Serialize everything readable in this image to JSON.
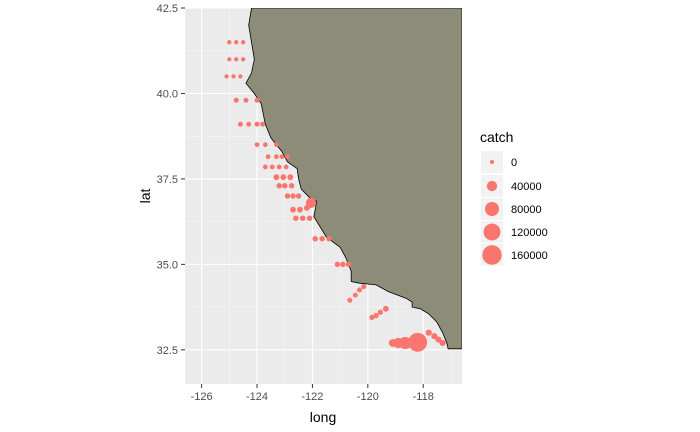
{
  "chart_data": {
    "type": "scatter",
    "xlabel": "long",
    "ylabel": "lat",
    "xlim": [
      -126.6,
      -116.6
    ],
    "ylim": [
      31.5,
      42.5
    ],
    "x_ticks": [
      -126,
      -124,
      -122,
      -120,
      -118
    ],
    "y_ticks": [
      32.5,
      35.0,
      37.5,
      40.0,
      42.5
    ],
    "x_tick_labels": [
      "-126",
      "-124",
      "-122",
      "-120",
      "-118"
    ],
    "y_tick_labels": [
      "32.5",
      "35.0",
      "37.5",
      "40.0",
      "42.5"
    ],
    "grid": true,
    "legend_placement": "right",
    "legend": {
      "title": "catch",
      "entries": [
        {
          "label": "0",
          "value": 0
        },
        {
          "label": "40000",
          "value": 40000
        },
        {
          "label": "80000",
          "value": 80000
        },
        {
          "label": "120000",
          "value": 120000
        },
        {
          "label": "160000",
          "value": 160000
        }
      ]
    },
    "colors": {
      "panel": "#ebebeb",
      "grid_major": "#ffffff",
      "land": "#8c8c78",
      "coast": "#000000",
      "point": "#f8766d"
    },
    "land_outline": [
      [
        -124.2,
        42.5
      ],
      [
        -124.3,
        42.0
      ],
      [
        -124.2,
        41.5
      ],
      [
        -124.1,
        41.0
      ],
      [
        -124.2,
        40.6
      ],
      [
        -124.4,
        40.3
      ],
      [
        -124.1,
        40.0
      ],
      [
        -123.85,
        39.7
      ],
      [
        -123.7,
        39.1
      ],
      [
        -123.5,
        38.7
      ],
      [
        -123.1,
        38.3
      ],
      [
        -122.9,
        38.0
      ],
      [
        -122.55,
        37.8
      ],
      [
        -122.5,
        37.5
      ],
      [
        -122.4,
        37.2
      ],
      [
        -122.1,
        36.95
      ],
      [
        -121.85,
        36.85
      ],
      [
        -121.9,
        36.6
      ],
      [
        -121.95,
        36.4
      ],
      [
        -121.5,
        35.8
      ],
      [
        -121.0,
        35.5
      ],
      [
        -120.8,
        35.2
      ],
      [
        -120.6,
        34.8
      ],
      [
        -120.6,
        34.5
      ],
      [
        -120.3,
        34.45
      ],
      [
        -119.7,
        34.4
      ],
      [
        -119.25,
        34.2
      ],
      [
        -118.6,
        34.0
      ],
      [
        -118.4,
        33.9
      ],
      [
        -118.4,
        33.75
      ],
      [
        -118.1,
        33.7
      ],
      [
        -117.8,
        33.55
      ],
      [
        -117.5,
        33.3
      ],
      [
        -117.3,
        33.0
      ],
      [
        -117.15,
        32.7
      ],
      [
        -117.1,
        32.53
      ],
      [
        -116.6,
        32.53
      ],
      [
        -116.6,
        42.5
      ]
    ],
    "points": [
      {
        "long": -125.0,
        "lat": 41.5,
        "catch": 1000
      },
      {
        "long": -124.75,
        "lat": 41.5,
        "catch": 1000
      },
      {
        "long": -124.5,
        "lat": 41.5,
        "catch": 1000
      },
      {
        "long": -125.0,
        "lat": 41.0,
        "catch": 1000
      },
      {
        "long": -124.75,
        "lat": 41.0,
        "catch": 1000
      },
      {
        "long": -124.5,
        "lat": 41.0,
        "catch": 1000
      },
      {
        "long": -125.1,
        "lat": 40.5,
        "catch": 1000
      },
      {
        "long": -124.85,
        "lat": 40.5,
        "catch": 1000
      },
      {
        "long": -124.6,
        "lat": 40.5,
        "catch": 1000
      },
      {
        "long": -124.75,
        "lat": 39.8,
        "catch": 4000
      },
      {
        "long": -124.4,
        "lat": 39.8,
        "catch": 4000
      },
      {
        "long": -124.0,
        "lat": 39.8,
        "catch": 4000
      },
      {
        "long": -124.6,
        "lat": 39.1,
        "catch": 4000
      },
      {
        "long": -124.3,
        "lat": 39.1,
        "catch": 4000
      },
      {
        "long": -124.0,
        "lat": 39.1,
        "catch": 4000
      },
      {
        "long": -123.8,
        "lat": 39.1,
        "catch": 4000
      },
      {
        "long": -124.0,
        "lat": 38.5,
        "catch": 3000
      },
      {
        "long": -123.7,
        "lat": 38.5,
        "catch": 3000
      },
      {
        "long": -123.3,
        "lat": 38.5,
        "catch": 3000
      },
      {
        "long": -123.6,
        "lat": 38.15,
        "catch": 3000
      },
      {
        "long": -123.3,
        "lat": 38.15,
        "catch": 3000
      },
      {
        "long": -123.1,
        "lat": 38.15,
        "catch": 3000
      },
      {
        "long": -122.9,
        "lat": 38.15,
        "catch": 3000
      },
      {
        "long": -123.7,
        "lat": 37.85,
        "catch": 3000
      },
      {
        "long": -123.45,
        "lat": 37.85,
        "catch": 3000
      },
      {
        "long": -123.2,
        "lat": 37.85,
        "catch": 3000
      },
      {
        "long": -122.95,
        "lat": 37.85,
        "catch": 3000
      },
      {
        "long": -123.3,
        "lat": 37.55,
        "catch": 8000
      },
      {
        "long": -123.05,
        "lat": 37.55,
        "catch": 8000
      },
      {
        "long": -122.8,
        "lat": 37.55,
        "catch": 8000
      },
      {
        "long": -123.2,
        "lat": 37.3,
        "catch": 6000
      },
      {
        "long": -123.0,
        "lat": 37.3,
        "catch": 6000
      },
      {
        "long": -122.75,
        "lat": 37.3,
        "catch": 6000
      },
      {
        "long": -122.9,
        "lat": 37.0,
        "catch": 6000
      },
      {
        "long": -122.7,
        "lat": 37.0,
        "catch": 6000
      },
      {
        "long": -122.5,
        "lat": 37.0,
        "catch": 6000
      },
      {
        "long": -122.7,
        "lat": 36.6,
        "catch": 8000
      },
      {
        "long": -122.45,
        "lat": 36.6,
        "catch": 8000
      },
      {
        "long": -122.2,
        "lat": 36.65,
        "catch": 8000
      },
      {
        "long": -122.05,
        "lat": 36.8,
        "catch": 40000
      },
      {
        "long": -122.6,
        "lat": 36.35,
        "catch": 6000
      },
      {
        "long": -122.35,
        "lat": 36.35,
        "catch": 6000
      },
      {
        "long": -122.1,
        "lat": 36.35,
        "catch": 6000
      },
      {
        "long": -121.9,
        "lat": 35.75,
        "catch": 6000
      },
      {
        "long": -121.65,
        "lat": 35.75,
        "catch": 6000
      },
      {
        "long": -121.4,
        "lat": 35.75,
        "catch": 6000
      },
      {
        "long": -121.1,
        "lat": 35.0,
        "catch": 6000
      },
      {
        "long": -120.9,
        "lat": 35.0,
        "catch": 6000
      },
      {
        "long": -120.7,
        "lat": 35.0,
        "catch": 6000
      },
      {
        "long": -120.65,
        "lat": 33.95,
        "catch": 4000
      },
      {
        "long": -120.45,
        "lat": 34.1,
        "catch": 4000
      },
      {
        "long": -120.3,
        "lat": 34.25,
        "catch": 4000
      },
      {
        "long": -120.15,
        "lat": 34.35,
        "catch": 4000
      },
      {
        "long": -119.85,
        "lat": 33.45,
        "catch": 5000
      },
      {
        "long": -119.7,
        "lat": 33.5,
        "catch": 5000
      },
      {
        "long": -119.55,
        "lat": 33.6,
        "catch": 5000
      },
      {
        "long": -119.35,
        "lat": 33.7,
        "catch": 8000
      },
      {
        "long": -119.1,
        "lat": 32.7,
        "catch": 20000
      },
      {
        "long": -118.9,
        "lat": 32.7,
        "catch": 40000
      },
      {
        "long": -118.65,
        "lat": 32.7,
        "catch": 60000
      },
      {
        "long": -118.2,
        "lat": 32.72,
        "catch": 150000
      },
      {
        "long": -117.8,
        "lat": 33.0,
        "catch": 10000
      },
      {
        "long": -117.6,
        "lat": 32.9,
        "catch": 10000
      },
      {
        "long": -117.45,
        "lat": 32.8,
        "catch": 10000
      },
      {
        "long": -117.3,
        "lat": 32.7,
        "catch": 10000
      }
    ]
  }
}
